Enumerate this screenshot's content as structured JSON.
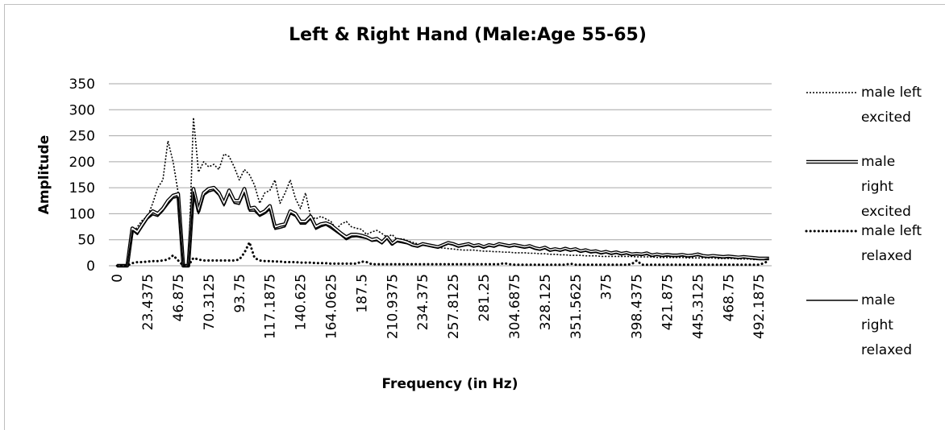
{
  "chart_data": {
    "type": "line",
    "title": "Left & Right Hand (Male:Age 55-65)",
    "xlabel": "Frequency (in Hz)",
    "ylabel": "Amplitude",
    "ylim": [
      0,
      350
    ],
    "yticks": [
      0,
      50,
      100,
      150,
      200,
      250,
      300,
      350
    ],
    "grid": true,
    "legend": "right",
    "categories": [
      "0",
      null,
      null,
      null,
      null,
      null,
      "23.4375",
      null,
      null,
      null,
      null,
      null,
      "46.875",
      null,
      null,
      null,
      null,
      null,
      "70.3125",
      null,
      null,
      null,
      null,
      null,
      "93.75",
      null,
      null,
      null,
      null,
      null,
      "117.1875",
      null,
      null,
      null,
      null,
      null,
      "140.625",
      null,
      null,
      null,
      null,
      null,
      "164.0625",
      null,
      null,
      null,
      null,
      null,
      "187.5",
      null,
      null,
      null,
      null,
      null,
      "210.9375",
      null,
      null,
      null,
      null,
      null,
      "234.375",
      null,
      null,
      null,
      null,
      null,
      "257.8125",
      null,
      null,
      null,
      null,
      null,
      "281.25",
      null,
      null,
      null,
      null,
      null,
      "304.6875",
      null,
      null,
      null,
      null,
      null,
      "328.125",
      null,
      null,
      null,
      null,
      null,
      "351.5625",
      null,
      null,
      null,
      null,
      null,
      "375",
      null,
      null,
      null,
      null,
      null,
      "398.4375",
      null,
      null,
      null,
      null,
      null,
      "421.875",
      null,
      null,
      null,
      null,
      null,
      "445.3125",
      null,
      null,
      null,
      null,
      null,
      "468.75",
      null,
      null,
      null,
      null,
      null,
      "492.1875",
      null,
      null
    ],
    "series": [
      {
        "name": "male left excited",
        "color": "#000000",
        "style": "dotted",
        "values": [
          0,
          0,
          0,
          60,
          75,
          88,
          95,
          120,
          150,
          165,
          240,
          200,
          140,
          0,
          0,
          285,
          180,
          200,
          190,
          195,
          185,
          215,
          210,
          190,
          165,
          185,
          175,
          155,
          120,
          140,
          145,
          165,
          120,
          140,
          165,
          130,
          110,
          140,
          95,
          90,
          95,
          90,
          85,
          70,
          80,
          85,
          75,
          72,
          70,
          60,
          65,
          68,
          62,
          55,
          60,
          50,
          52,
          48,
          45,
          42,
          40,
          38,
          36,
          35,
          34,
          33,
          32,
          31,
          30,
          30,
          30,
          29,
          28,
          28,
          27,
          27,
          26,
          26,
          25,
          25,
          25,
          24,
          24,
          23,
          23,
          22,
          22,
          21,
          21,
          20,
          20,
          20,
          19,
          19,
          19,
          18,
          18,
          18,
          18,
          18,
          18,
          18,
          17,
          17,
          17,
          17,
          16,
          16,
          16,
          16,
          16,
          16,
          15,
          15,
          15,
          15,
          15,
          15,
          14,
          14,
          14,
          14,
          13,
          13,
          13,
          12,
          12,
          12,
          12
        ]
      },
      {
        "name": "male right excited",
        "color": "#000000",
        "style": "double",
        "values": [
          0,
          0,
          0,
          72,
          65,
          80,
          95,
          105,
          100,
          110,
          125,
          135,
          138,
          0,
          0,
          148,
          105,
          140,
          148,
          150,
          140,
          120,
          145,
          125,
          125,
          148,
          110,
          112,
          100,
          105,
          115,
          75,
          78,
          80,
          105,
          100,
          85,
          85,
          95,
          75,
          80,
          82,
          78,
          70,
          62,
          55,
          60,
          60,
          58,
          55,
          50,
          52,
          45,
          55,
          42,
          50,
          48,
          45,
          40,
          38,
          42,
          40,
          38,
          36,
          40,
          44,
          42,
          38,
          40,
          42,
          38,
          40,
          36,
          40,
          38,
          42,
          40,
          38,
          40,
          38,
          36,
          38,
          34,
          32,
          35,
          30,
          32,
          30,
          33,
          30,
          32,
          28,
          30,
          27,
          28,
          25,
          27,
          24,
          26,
          23,
          25,
          22,
          23,
          22,
          24,
          20,
          22,
          20,
          21,
          20,
          20,
          21,
          19,
          20,
          22,
          19,
          18,
          19,
          18,
          17,
          18,
          17,
          16,
          17,
          16,
          15,
          14,
          14,
          14
        ]
      },
      {
        "name": "male left relaxed",
        "color": "#000000",
        "style": "dotted-bold",
        "values": [
          0,
          0,
          0,
          5,
          7,
          7,
          8,
          9,
          9,
          10,
          12,
          20,
          10,
          0,
          0,
          15,
          12,
          10,
          10,
          10,
          10,
          10,
          10,
          10,
          12,
          25,
          45,
          15,
          10,
          9,
          9,
          8,
          8,
          7,
          7,
          7,
          6,
          6,
          6,
          5,
          5,
          5,
          4,
          4,
          4,
          4,
          4,
          4,
          8,
          7,
          3,
          3,
          3,
          3,
          3,
          3,
          3,
          3,
          3,
          3,
          3,
          3,
          3,
          3,
          3,
          3,
          3,
          3,
          3,
          3,
          3,
          3,
          3,
          3,
          3,
          3,
          5,
          3,
          2,
          2,
          2,
          2,
          2,
          2,
          2,
          2,
          2,
          2,
          2,
          4,
          2,
          2,
          2,
          2,
          2,
          2,
          2,
          2,
          2,
          2,
          2,
          3,
          10,
          2,
          2,
          2,
          2,
          2,
          2,
          2,
          2,
          2,
          2,
          2,
          2,
          2,
          2,
          2,
          2,
          2,
          2,
          2,
          2,
          2,
          2,
          2,
          2,
          5,
          10
        ]
      },
      {
        "name": "male right relaxed",
        "color": "#000000",
        "style": "solid",
        "values": [
          0,
          0,
          0,
          68,
          60,
          75,
          90,
          98,
          95,
          105,
          118,
          130,
          132,
          0,
          0,
          142,
          100,
          135,
          142,
          145,
          135,
          115,
          138,
          120,
          118,
          140,
          105,
          105,
          95,
          100,
          108,
          70,
          72,
          75,
          100,
          95,
          80,
          80,
          90,
          70,
          75,
          78,
          72,
          65,
          58,
          50,
          55,
          56,
          54,
          52,
          47,
          48,
          42,
          52,
          40,
          46,
          44,
          42,
          38,
          36,
          40,
          38,
          36,
          34,
          38,
          42,
          40,
          36,
          38,
          40,
          36,
          38,
          34,
          38,
          36,
          40,
          38,
          36,
          38,
          36,
          34,
          36,
          32,
          30,
          33,
          28,
          30,
          28,
          31,
          28,
          30,
          26,
          28,
          25,
          26,
          23,
          25,
          22,
          24,
          21,
          23,
          20,
          21,
          20,
          22,
          18,
          20,
          18,
          19,
          18,
          18,
          19,
          17,
          18,
          20,
          17,
          16,
          17,
          16,
          15,
          16,
          15,
          14,
          15,
          14,
          13,
          12,
          12,
          14
        ]
      }
    ]
  }
}
